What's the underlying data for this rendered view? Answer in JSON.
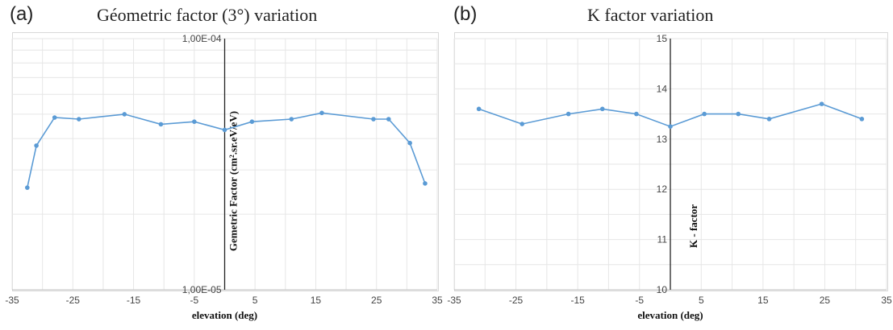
{
  "colors": {
    "series": "#5b9bd5",
    "grid": "#e6e6e6",
    "axis": "#222222"
  },
  "panels": {
    "a": {
      "letter": "(a)"
    },
    "b": {
      "letter": "(b)"
    }
  },
  "chart_data": [
    {
      "type": "line",
      "title": "Géometric factor (3°) variation",
      "xlabel": "elevation (deg)",
      "ylabel": "Gemetric Factor (cm².sr.eV/eV)",
      "y_scale": "log",
      "xlim": [
        -35,
        35
      ],
      "ylim": [
        1e-05,
        0.0001
      ],
      "x_ticks": [
        -35,
        -25,
        -15,
        -5,
        5,
        15,
        25,
        35
      ],
      "x_tick_labels": [
        "-35",
        "-25",
        "-15",
        "-5",
        "5",
        "15",
        "25",
        "35"
      ],
      "y_ticks": [
        1e-05,
        0.0001
      ],
      "y_tick_labels": [
        "1,00E-05",
        "1,00E-04"
      ],
      "grid": true,
      "series": [
        {
          "x": [
            -32.5,
            -31,
            -28,
            -24,
            -16.5,
            -10.5,
            -5,
            0,
            4.5,
            11,
            16,
            24.5,
            27,
            30.5,
            33
          ],
          "y": [
            2.55e-05,
            3.75e-05,
            4.85e-05,
            4.78e-05,
            5e-05,
            4.56e-05,
            4.67e-05,
            4.33e-05,
            4.67e-05,
            4.78e-05,
            5.06e-05,
            4.78e-05,
            4.78e-05,
            3.84e-05,
            2.65e-05
          ]
        }
      ]
    },
    {
      "type": "line",
      "title": "K factor variation",
      "xlabel": "elevation (deg)",
      "ylabel": "K - factor",
      "xlim": [
        -35,
        35
      ],
      "ylim": [
        10,
        15
      ],
      "x_ticks": [
        -35,
        -25,
        -15,
        -5,
        5,
        15,
        25,
        35
      ],
      "x_tick_labels": [
        "-35",
        "-25",
        "-15",
        "-5",
        "5",
        "15",
        "25",
        "35"
      ],
      "y_ticks": [
        10,
        11,
        12,
        13,
        14,
        15
      ],
      "y_tick_labels": [
        "10",
        "11",
        "12",
        "13",
        "14",
        "15"
      ],
      "grid": true,
      "series": [
        {
          "x": [
            -31,
            -24,
            -16.5,
            -11,
            -5.5,
            0,
            5.5,
            11,
            16,
            24.5,
            31
          ],
          "y": [
            13.6,
            13.3,
            13.5,
            13.6,
            13.5,
            13.25,
            13.5,
            13.5,
            13.4,
            13.7,
            13.4
          ]
        }
      ]
    }
  ]
}
